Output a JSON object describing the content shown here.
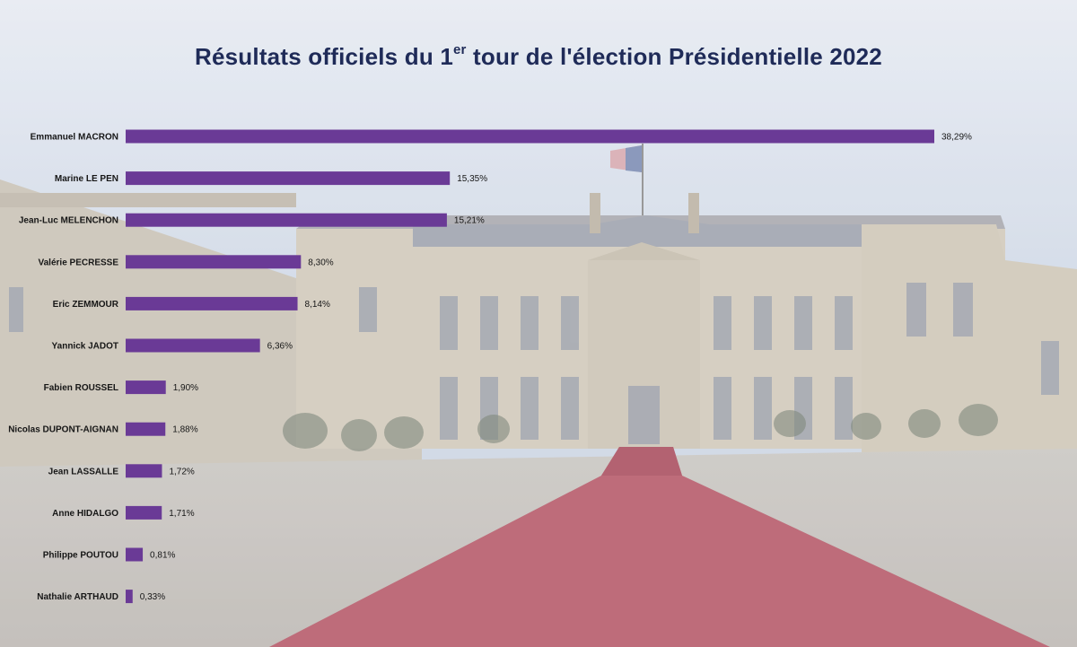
{
  "title": {
    "before": "Résultats officiels du 1",
    "sup": "er",
    "after": " tour de l'élection Présidentielle 2022"
  },
  "colors": {
    "bar": "#6a3a96",
    "title": "#1f2b58"
  },
  "chart_data": {
    "type": "bar",
    "orientation": "horizontal",
    "title": "Résultats officiels du 1er tour de l'élection Présidentielle 2022",
    "xlabel": "",
    "ylabel": "",
    "xlim": [
      0,
      40
    ],
    "grid": false,
    "legend": "none",
    "categories": [
      "Emmanuel MACRON",
      "Marine LE PEN",
      "Jean-Luc MELENCHON",
      "Valérie PECRESSE",
      "Eric ZEMMOUR",
      "Yannick JADOT",
      "Fabien ROUSSEL",
      "Nicolas DUPONT-AIGNAN",
      "Jean LASSALLE",
      "Anne HIDALGO",
      "Philippe POUTOU",
      "Nathalie ARTHAUD"
    ],
    "values": [
      38.29,
      15.35,
      15.21,
      8.3,
      8.14,
      6.36,
      1.9,
      1.88,
      1.72,
      1.71,
      0.81,
      0.33
    ],
    "value_labels": [
      "38,29%",
      "15,35%",
      "15,21%",
      "8,30%",
      "8,14%",
      "6,36%",
      "1,90%",
      "1,88%",
      "1,72%",
      "1,71%",
      "0,81%",
      "0,33%"
    ]
  }
}
